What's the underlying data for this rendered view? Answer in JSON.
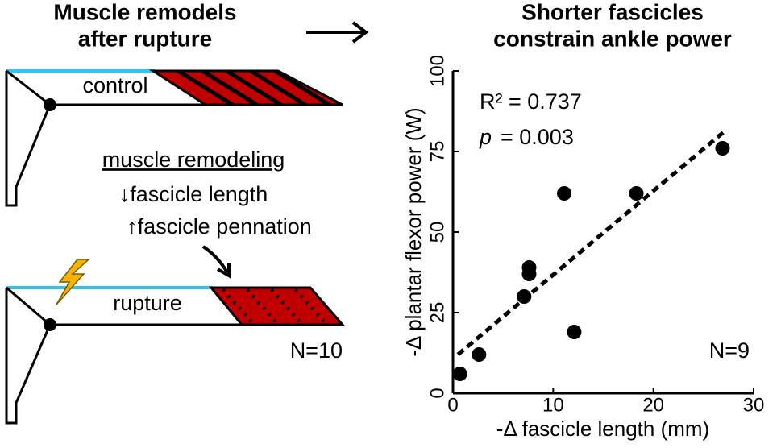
{
  "diagram": {
    "title": [
      "Muscle remodels",
      "after rupture"
    ],
    "control_label": "control",
    "remodeling_title": "muscle remodeling",
    "remodeling_items": [
      "↓fascicle length",
      "↑fascicle pennation"
    ],
    "rupture_label": "rupture",
    "n_label": "N=10"
  },
  "chart_data": {
    "type": "scatter",
    "title": [
      "Shorter fascicles",
      "constrain ankle power"
    ],
    "x_label": "-Δ fascicle length (mm)",
    "y_label": "-Δ plantar flexor power (W)",
    "x": [
      0.7,
      2.6,
      7.1,
      7.6,
      7.6,
      11.1,
      12.1,
      18.3,
      26.9
    ],
    "values": [
      6,
      12,
      30,
      37,
      39,
      62,
      19,
      62,
      76
    ],
    "color": "#000000",
    "xlim": [
      0,
      30
    ],
    "xticks": [
      0,
      10,
      20,
      30
    ],
    "ylim": [
      0,
      100
    ],
    "yticks": [
      0,
      25,
      50,
      75,
      100
    ],
    "trendline": {
      "x": [
        0.5,
        27
      ],
      "values": [
        12,
        81
      ]
    },
    "annotations": {
      "r2": "R² = 0.737",
      "p_symbol": "p",
      "p_text": "= 0.003",
      "n": "N=9"
    }
  }
}
